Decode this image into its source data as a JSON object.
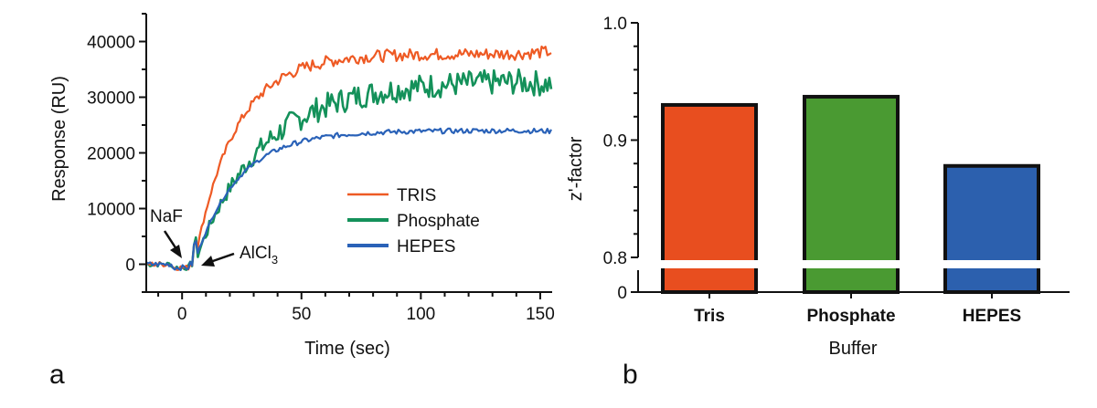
{
  "panels": {
    "a": "a",
    "b": "b"
  },
  "colors": {
    "tris": "#ee5a24",
    "phosphate": "#14915a",
    "hepes": "#2a62b8",
    "axis": "#111111"
  },
  "chart_data": [
    {
      "type": "line",
      "panel": "a",
      "title": "",
      "xlabel": "Time (sec)",
      "ylabel": "Response (RU)",
      "xlim": [
        -15,
        155
      ],
      "ylim": [
        -5000,
        45000
      ],
      "xticks": [
        0,
        50,
        100,
        150
      ],
      "yticks": [
        0,
        10000,
        20000,
        30000,
        40000
      ],
      "ytick_labels": [
        "0",
        "10000",
        "20000",
        "30000",
        "40000"
      ],
      "legend": {
        "position": "center-right",
        "entries": [
          "TRIS",
          "Phosphate",
          "HEPES"
        ]
      },
      "annotations": [
        {
          "text": "NaF",
          "x": -2,
          "y": 800,
          "sub": ""
        },
        {
          "text": "AlCl",
          "sub": "3",
          "x": 7,
          "y": 800
        }
      ],
      "series": [
        {
          "name": "TRIS",
          "color": "#ee5a24",
          "injection_time": 5,
          "plateau": 37800,
          "tau": 17,
          "noise": 1100,
          "final": 38200
        },
        {
          "name": "Phosphate",
          "color": "#14915a",
          "injection_time": 5,
          "plateau": 33000,
          "tau": 28,
          "noise": 2300,
          "final": 32500
        },
        {
          "name": "HEPES",
          "color": "#2a62b8",
          "injection_time": 5,
          "plateau": 24000,
          "tau": 18,
          "noise": 450,
          "final": 23900
        }
      ]
    },
    {
      "type": "bar",
      "panel": "b",
      "title": "",
      "xlabel": "Buffer",
      "ylabel": "z'-factor",
      "categories": [
        "Tris",
        "Phosphate",
        "HEPES"
      ],
      "values": [
        0.93,
        0.937,
        0.878
      ],
      "colors": [
        "#e84e1f",
        "#4a9a32",
        "#2c60ae"
      ],
      "ylim": [
        0.8,
        1.0
      ],
      "yticks": [
        0.8,
        0.9,
        1.0
      ],
      "ytick_labels": [
        "0.8",
        "0.9",
        "1.0"
      ],
      "axis_break": {
        "lower_label": "0"
      }
    }
  ]
}
